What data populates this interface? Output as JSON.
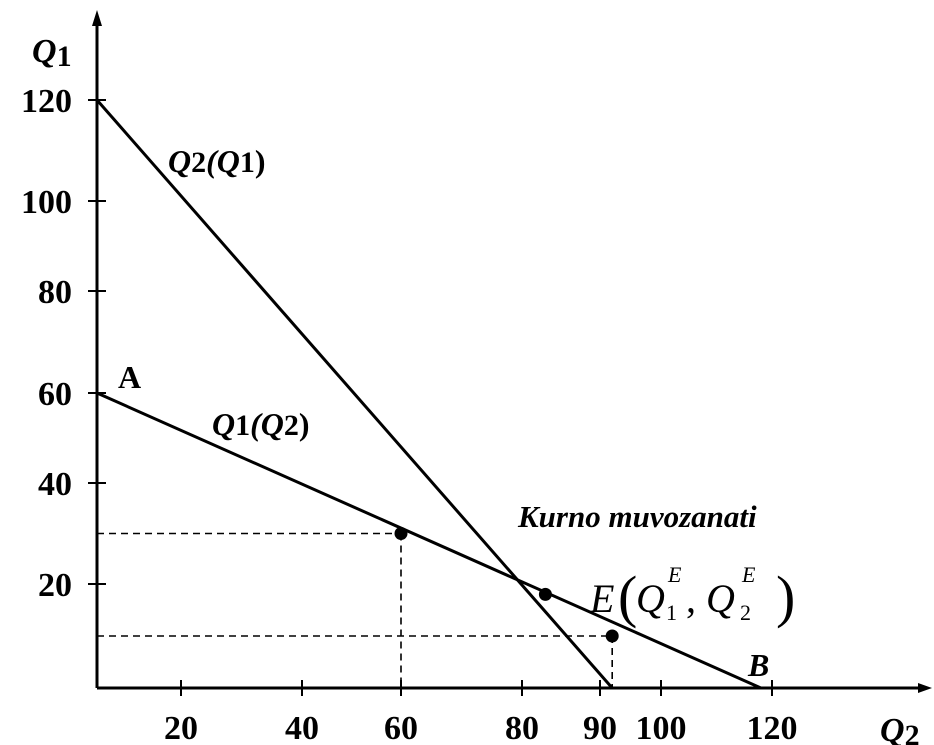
{
  "chart_data": {
    "type": "line",
    "x_axis_label": "Q",
    "x_axis_label_sub": "2",
    "y_axis_label": "Q",
    "y_axis_label_sub": "1",
    "x_ticks": [
      "20",
      "40",
      "60",
      "80",
      "90",
      "100",
      "120"
    ],
    "y_ticks": [
      "20",
      "40",
      "60",
      "80",
      "100",
      "120"
    ],
    "series": [
      {
        "name": "Q2(Q1)",
        "label_parts": [
          "Q",
          "2",
          "(Q",
          "1",
          ")"
        ],
        "points": [
          [
            0,
            120
          ],
          [
            92,
            0
          ]
        ]
      },
      {
        "name": "Q1(Q2)",
        "label_parts": [
          "Q",
          "1",
          "(Q",
          "2",
          ")"
        ],
        "points": [
          [
            0,
            60
          ],
          [
            118,
            0
          ]
        ]
      }
    ],
    "highlighted_points": [
      {
        "x": 60,
        "y": 30
      },
      {
        "x": 83,
        "y": 18
      },
      {
        "x": 92,
        "y": 10
      }
    ],
    "reference_lines": [
      {
        "x": 60,
        "y": 30
      },
      {
        "x": 92,
        "y": 10
      }
    ],
    "point_labels": [
      "A",
      "B"
    ],
    "annotation": "Kurno muvozanati",
    "equilibrium_label": {
      "letter": "E",
      "open": "(",
      "q": "Q",
      "sub1": "1",
      "sup1": "E",
      "comma": ",",
      "sub2": "2",
      "sup2": "E",
      "close": ")"
    }
  }
}
